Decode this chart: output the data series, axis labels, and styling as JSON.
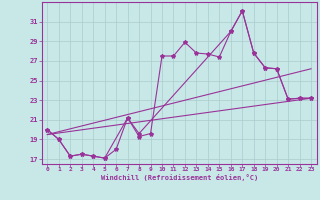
{
  "background_color": "#c8e8e8",
  "grid_color": "#aacccc",
  "line_color": "#993399",
  "xlabel": "Windchill (Refroidissement éolien,°C)",
  "xlim": [
    -0.5,
    23.5
  ],
  "ylim": [
    16.5,
    33.0
  ],
  "yticks": [
    17,
    19,
    21,
    23,
    25,
    27,
    29,
    31
  ],
  "xticks": [
    0,
    1,
    2,
    3,
    4,
    5,
    6,
    7,
    8,
    9,
    10,
    11,
    12,
    13,
    14,
    15,
    16,
    17,
    18,
    19,
    20,
    21,
    22,
    23
  ],
  "line1_x": [
    0,
    1,
    2,
    3,
    4,
    5,
    6,
    7,
    8,
    9,
    10,
    11,
    12,
    13,
    14,
    15,
    16,
    17,
    18,
    19,
    20,
    21,
    22,
    23
  ],
  "line1_y": [
    20.0,
    19.0,
    17.3,
    17.5,
    17.3,
    17.1,
    18.0,
    21.2,
    19.3,
    19.6,
    27.5,
    27.5,
    28.9,
    27.8,
    27.7,
    27.4,
    30.0,
    32.1,
    27.8,
    26.3,
    26.2,
    23.1,
    23.2,
    23.2
  ],
  "line2_x": [
    0,
    1,
    2,
    3,
    4,
    5,
    7,
    8,
    16,
    17,
    18,
    19,
    20,
    21,
    22,
    23
  ],
  "line2_y": [
    20.0,
    19.0,
    17.3,
    17.5,
    17.3,
    17.1,
    21.2,
    19.6,
    30.0,
    32.1,
    27.8,
    26.3,
    26.2,
    23.1,
    23.2,
    23.2
  ],
  "trend1_x": [
    0,
    23
  ],
  "trend1_y": [
    19.5,
    26.2
  ],
  "trend2_x": [
    0,
    23
  ],
  "trend2_y": [
    19.5,
    23.2
  ]
}
